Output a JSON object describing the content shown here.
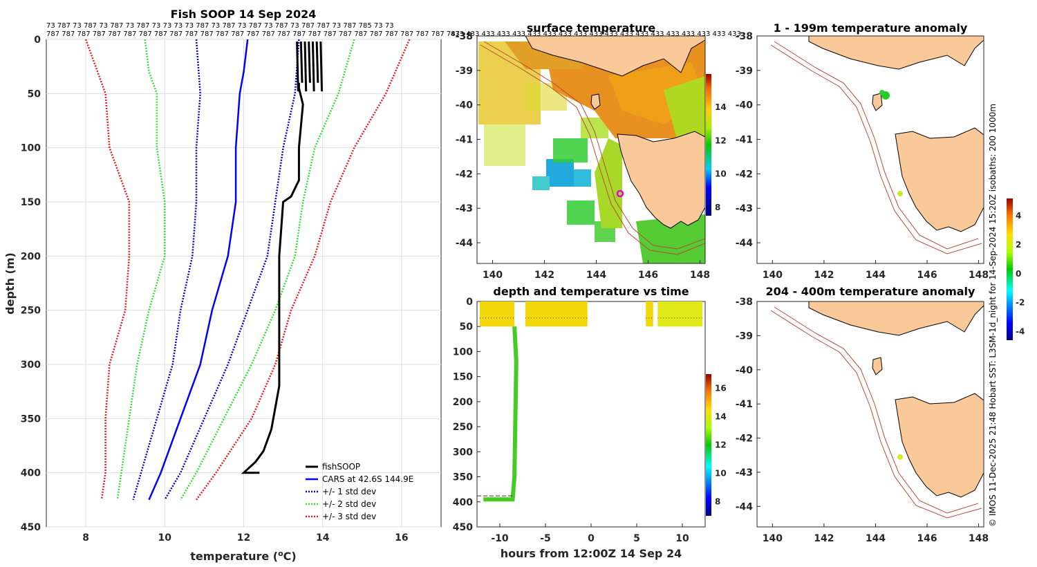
{
  "colors": {
    "cars": "#0000ff",
    "std1": "#0000cc",
    "std2": "#33dd33",
    "std3": "#e61a1a",
    "fish": "#000000",
    "land": "#f9c99a",
    "isobath": "#b84a3a",
    "marker": "#e000e0"
  },
  "chart_data": [
    {
      "type": "line",
      "id": "profile",
      "title": "Fish SOOP 14 Sep 2024",
      "xlabel": "temperature (oC)",
      "ylabel": "depth (m)",
      "xlim": [
        7,
        17
      ],
      "ylim": [
        0,
        450
      ],
      "xticks": [
        8,
        10,
        12,
        14,
        16
      ],
      "yticks": [
        0,
        50,
        100,
        150,
        200,
        250,
        300,
        350,
        400,
        450
      ],
      "top_labels_row1": "73 787 73 787 73 787 73 787 73 73 73 73 787 73 787 73 787 73 787 73 787 787 73 787 785 73 73",
      "top_labels_row2": "787 787 787 787 787 787 787 787 787 787 787 787 787 787 787 787 787 787 787 787 787 787 787 787 787 787 787",
      "legend": [
        "fishSOOP",
        "CARS at 42.6S 144.9E",
        "+/- 1 std dev",
        "+/- 2 std dev",
        "+/- 3 std dev"
      ],
      "series": [
        {
          "name": "CARS",
          "depth": [
            0,
            30,
            50,
            100,
            150,
            200,
            250,
            300,
            350,
            400,
            425
          ],
          "temp": [
            12.1,
            12.0,
            11.9,
            11.8,
            11.8,
            11.6,
            11.2,
            10.9,
            10.4,
            9.9,
            9.6
          ]
        },
        {
          "name": "plus1",
          "depth": [
            0,
            50,
            100,
            150,
            200,
            250,
            300,
            350,
            400,
            425
          ],
          "temp": [
            13.4,
            13.3,
            13.0,
            12.8,
            12.6,
            12.1,
            11.6,
            11.0,
            10.4,
            10.0
          ]
        },
        {
          "name": "minus1",
          "depth": [
            0,
            50,
            100,
            150,
            200,
            250,
            300,
            350,
            400,
            425
          ],
          "temp": [
            10.8,
            10.9,
            10.8,
            10.8,
            10.7,
            10.4,
            10.2,
            9.8,
            9.4,
            9.2
          ]
        },
        {
          "name": "plus2",
          "depth": [
            0,
            50,
            100,
            150,
            200,
            250,
            300,
            350,
            400,
            425
          ],
          "temp": [
            14.8,
            14.4,
            13.8,
            13.5,
            13.3,
            12.8,
            12.2,
            11.5,
            10.8,
            10.4
          ]
        },
        {
          "name": "minus2",
          "depth": [
            0,
            30,
            50,
            100,
            150,
            200,
            250,
            300,
            350,
            400,
            425
          ],
          "temp": [
            9.5,
            9.6,
            9.8,
            9.8,
            10.0,
            10.0,
            9.6,
            9.3,
            9.1,
            8.9,
            8.8
          ]
        },
        {
          "name": "plus3",
          "depth": [
            0,
            50,
            100,
            150,
            200,
            250,
            300,
            350,
            400,
            425
          ],
          "temp": [
            16.2,
            15.6,
            14.8,
            14.2,
            13.8,
            13.2,
            12.8,
            12.2,
            11.3,
            10.8
          ]
        },
        {
          "name": "minus3",
          "depth": [
            0,
            50,
            100,
            150,
            200,
            250,
            300,
            350,
            400,
            425
          ],
          "temp": [
            8.0,
            8.5,
            8.6,
            9.1,
            9.1,
            9.0,
            8.6,
            8.5,
            8.5,
            8.4
          ]
        },
        {
          "name": "fishSOOP",
          "depth": [
            40,
            45,
            60,
            100,
            130,
            145,
            150,
            200,
            230,
            280,
            320,
            340,
            360,
            380,
            390,
            400,
            400
          ],
          "temp": [
            13.4,
            13.4,
            13.5,
            13.4,
            13.4,
            13.2,
            13.0,
            12.9,
            12.9,
            12.9,
            12.9,
            12.8,
            12.7,
            12.5,
            12.3,
            12.0,
            12.4
          ]
        }
      ]
    },
    {
      "type": "heatmap",
      "id": "sst",
      "title": "surface temperature",
      "xticks": [
        140,
        142,
        144,
        146,
        148
      ],
      "yticks": [
        -38,
        -39,
        -40,
        -41,
        -42,
        -43,
        -44
      ],
      "xlim": [
        139.4,
        148.2
      ],
      "ylim": [
        -44.6,
        -38
      ],
      "colorbar_ticks": [
        8,
        10,
        12,
        14
      ],
      "colorbar_range": [
        7.5,
        16
      ],
      "top_labels": "433 433 433 433 433 433 433 433 433 433 433 433 433 433 433 433 433 433 433"
    },
    {
      "type": "scatter",
      "id": "time",
      "title": "depth and temperature vs time",
      "xlabel": "hours from 12:00Z 14 Sep 24",
      "xlim": [
        -12.5,
        12.5
      ],
      "ylim": [
        0,
        450
      ],
      "xticks": [
        -10,
        -5,
        0,
        5,
        10
      ],
      "yticks": [
        0,
        50,
        100,
        150,
        200,
        250,
        300,
        350,
        400,
        450
      ],
      "colorbar_ticks": [
        8,
        10,
        12,
        14,
        16
      ],
      "colorbar_range": [
        7,
        17
      ],
      "surface_segments": [
        [
          -12.2,
          -8.4
        ],
        [
          -7.2,
          -0.4
        ],
        [
          6.0,
          6.8
        ],
        [
          7.3,
          12.2
        ]
      ],
      "dive": {
        "hours": [
          -8.4,
          -8.2,
          -8.4,
          -8.6,
          -11.8
        ],
        "depth": [
          50,
          120,
          350,
          395,
          395
        ]
      }
    },
    {
      "type": "map",
      "id": "anom1",
      "title": "1 - 199m temperature anomaly",
      "xticks": [
        140,
        142,
        144,
        146,
        148
      ],
      "yticks": [
        -38,
        -39,
        -40,
        -41,
        -42,
        -43,
        -44
      ]
    },
    {
      "type": "map",
      "id": "anom2",
      "title": "204 - 400m temperature anomaly",
      "xticks": [
        140,
        142,
        144,
        146,
        148
      ],
      "yticks": [
        -38,
        -39,
        -40,
        -41,
        -42,
        -43,
        -44
      ],
      "colorbar_ticks": [
        -4,
        -2,
        0,
        2,
        4
      ],
      "colorbar_range": [
        -4.6,
        5.2
      ]
    }
  ],
  "credit": "© IMOS 11-Dec-2025 21:48 Hobart SST: L3SM-1d_night for 14-Sep-2024 15:20Z isobaths: 200 1000m"
}
